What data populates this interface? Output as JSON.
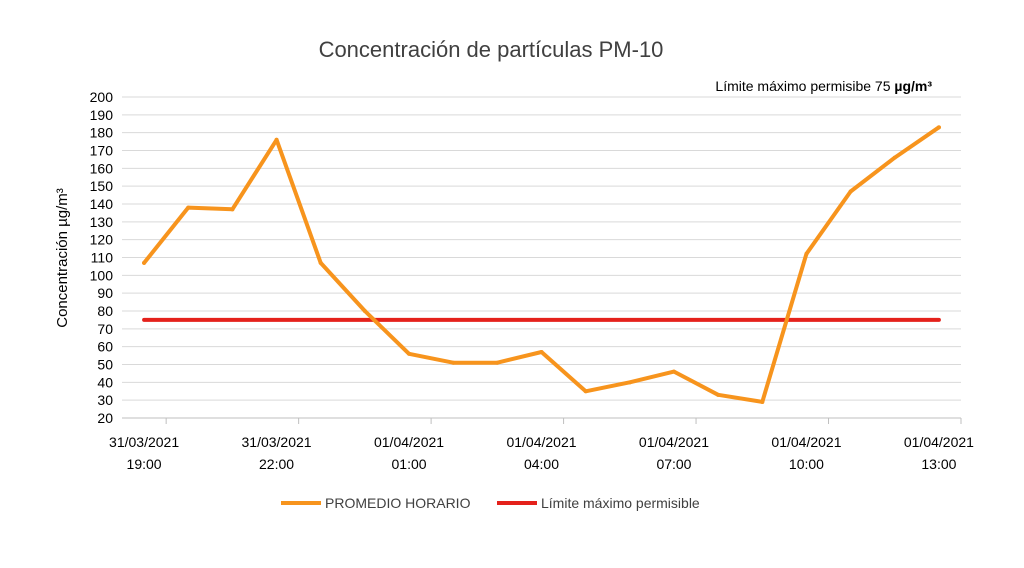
{
  "chart_data": {
    "type": "line",
    "title": "Concentración de partículas PM-10",
    "ylabel": "Concentración µg/m³",
    "xlabel": "",
    "ylim": [
      20,
      200
    ],
    "ystep": 10,
    "grid": true,
    "annotation": {
      "prefix": "Límite máximo permisibe 75 ",
      "unit": "µg/m³"
    },
    "x_tick_labels": [
      {
        "date": "31/03/2021",
        "time": "19:00"
      },
      {
        "date": "31/03/2021",
        "time": "22:00"
      },
      {
        "date": "01/04/2021",
        "time": "01:00"
      },
      {
        "date": "01/04/2021",
        "time": "04:00"
      },
      {
        "date": "01/04/2021",
        "time": "07:00"
      },
      {
        "date": "01/04/2021",
        "time": "10:00"
      },
      {
        "date": "01/04/2021",
        "time": "13:00"
      }
    ],
    "x_hours": [
      "19:00",
      "20:00",
      "21:00",
      "22:00",
      "23:00",
      "00:00",
      "01:00",
      "02:00",
      "03:00",
      "04:00",
      "05:00",
      "06:00",
      "07:00",
      "08:00",
      "09:00",
      "10:00",
      "11:00",
      "12:00",
      "13:00"
    ],
    "series": [
      {
        "name": "PROMEDIO HORARIO",
        "color": "#f7941d",
        "values": [
          107,
          138,
          137,
          176,
          107,
          80,
          56,
          51,
          51,
          57,
          35,
          40,
          46,
          33,
          29,
          112,
          147,
          166,
          183
        ]
      },
      {
        "name": "Límite máximo permisible",
        "color": "#e4211b",
        "values": [
          75,
          75,
          75,
          75,
          75,
          75,
          75,
          75,
          75,
          75,
          75,
          75,
          75,
          75,
          75,
          75,
          75,
          75,
          75
        ]
      }
    ],
    "legend_position": "bottom"
  }
}
